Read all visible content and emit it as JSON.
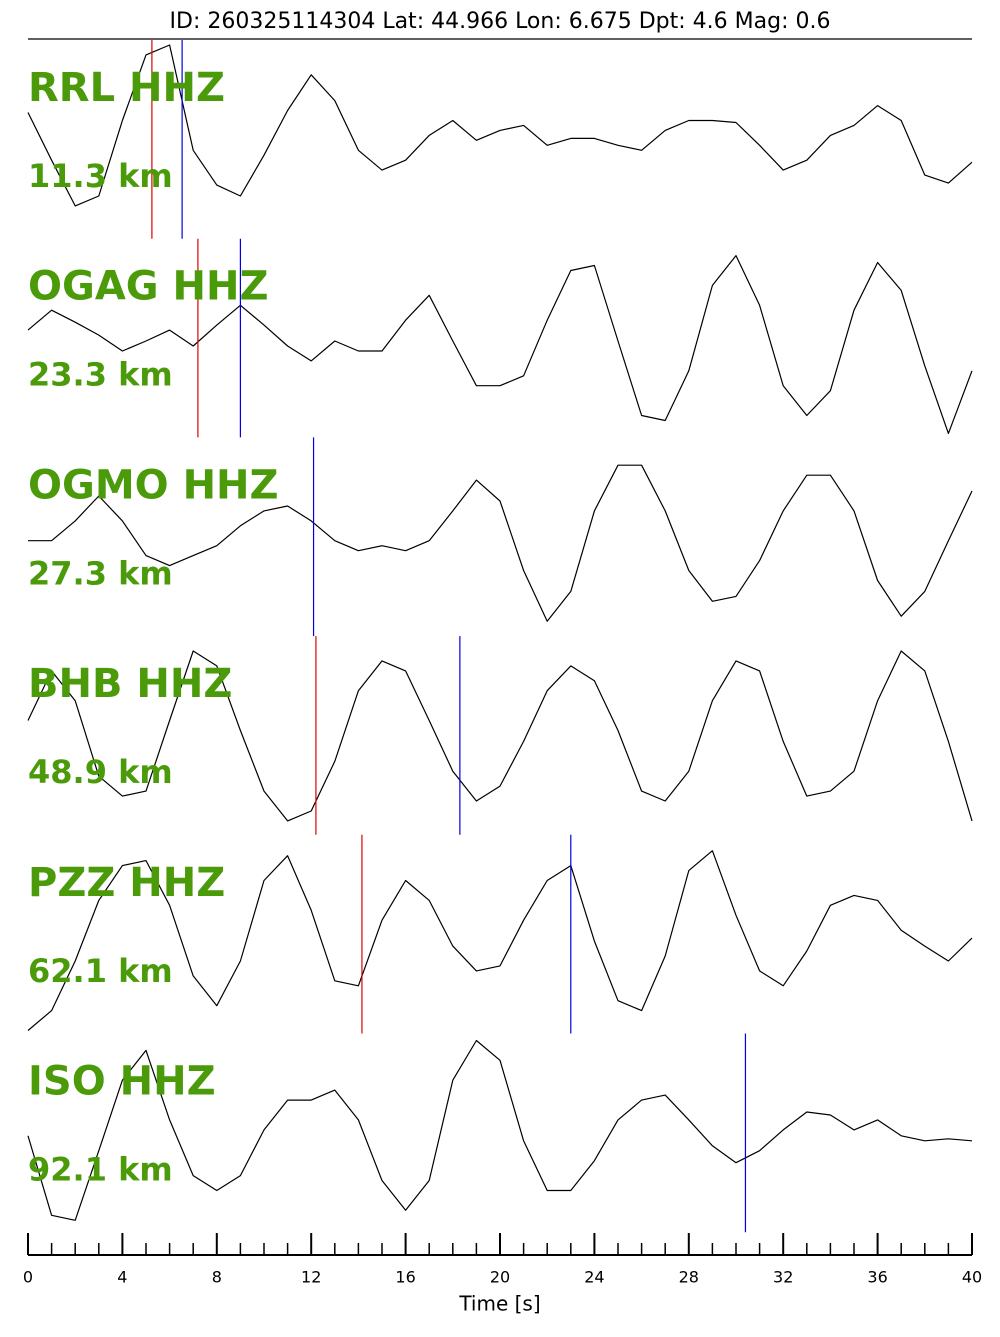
{
  "chart_data": {
    "type": "seismogram",
    "title": "ID: 260325114304 Lat:  44.966 Lon:   6.675 Dpt:     4.6 Mag:   0.6",
    "x_label": "Time [s]",
    "xlim": [
      0,
      40
    ],
    "xticks": [
      0,
      4,
      8,
      12,
      16,
      20,
      24,
      28,
      32,
      36,
      40
    ],
    "xminorticks": [
      1,
      2,
      3,
      5,
      6,
      7,
      9,
      10,
      11,
      13,
      14,
      15,
      17,
      18,
      19,
      21,
      22,
      23,
      25,
      26,
      27,
      29,
      30,
      31,
      33,
      34,
      35,
      37,
      38,
      39
    ],
    "ylim": [
      -1,
      1
    ],
    "trace_color": "#000000",
    "label_color": "#4a9a0a",
    "p_pick_color": "#e00000",
    "s_pick_color": "#0000e0",
    "x": [
      0,
      1,
      2,
      3,
      4,
      5,
      6,
      7,
      8,
      9,
      10,
      11,
      12,
      13,
      14,
      15,
      16,
      17,
      18,
      19,
      20,
      21,
      22,
      23,
      24,
      25,
      26,
      27,
      28,
      29,
      30,
      31,
      32,
      33,
      34,
      35,
      36,
      37,
      38,
      39,
      40
    ],
    "traces": [
      {
        "station": "RRL HHZ",
        "distance": "11.3 km",
        "p_pick": 5.25,
        "s_pick": 6.53,
        "values": [
          0.27,
          -0.21,
          -0.67,
          -0.57,
          0.19,
          0.85,
          0.95,
          -0.11,
          -0.46,
          -0.57,
          -0.16,
          0.29,
          0.65,
          0.39,
          -0.11,
          -0.31,
          -0.21,
          0.04,
          0.19,
          -0.01,
          0.09,
          0.14,
          -0.06,
          0.01,
          0.01,
          -0.06,
          -0.11,
          0.09,
          0.19,
          0.19,
          0.17,
          -0.06,
          -0.31,
          -0.21,
          0.04,
          0.14,
          0.34,
          0.19,
          -0.36,
          -0.44,
          -0.23
        ]
      },
      {
        "station": "OGAG HHZ",
        "distance": "23.3 km",
        "p_pick": 7.2,
        "s_pick": 9.0,
        "values": [
          0.08,
          0.28,
          0.16,
          0.03,
          -0.13,
          -0.03,
          0.08,
          -0.08,
          0.13,
          0.33,
          0.13,
          -0.08,
          -0.23,
          -0.03,
          -0.13,
          -0.13,
          0.18,
          0.43,
          -0.03,
          -0.48,
          -0.48,
          -0.38,
          0.18,
          0.68,
          0.73,
          -0.03,
          -0.78,
          -0.83,
          -0.33,
          0.53,
          0.83,
          0.33,
          -0.48,
          -0.78,
          -0.53,
          0.28,
          0.76,
          0.48,
          -0.28,
          -0.96,
          -0.33
        ]
      },
      {
        "station": "OGMO HHZ",
        "distance": "27.3 km",
        "s_pick": 12.1,
        "values": [
          -0.04,
          -0.04,
          0.16,
          0.41,
          0.16,
          -0.19,
          -0.29,
          -0.19,
          -0.09,
          0.11,
          0.26,
          0.31,
          0.16,
          -0.04,
          -0.14,
          -0.09,
          -0.14,
          -0.04,
          0.26,
          0.57,
          0.36,
          -0.34,
          -0.85,
          -0.55,
          0.26,
          0.72,
          0.72,
          0.26,
          -0.34,
          -0.65,
          -0.6,
          -0.24,
          0.26,
          0.62,
          0.62,
          0.26,
          -0.44,
          -0.8,
          -0.55,
          -0.04,
          0.46
        ]
      },
      {
        "station": "BHB HHZ",
        "distance": "48.9 km",
        "p_pick": 12.2,
        "s_pick": 18.3,
        "values": [
          0.15,
          0.65,
          0.35,
          -0.41,
          -0.61,
          -0.56,
          0.15,
          0.85,
          0.7,
          0.05,
          -0.56,
          -0.86,
          -0.76,
          -0.26,
          0.45,
          0.75,
          0.65,
          0.15,
          -0.36,
          -0.66,
          -0.51,
          -0.06,
          0.45,
          0.7,
          0.55,
          0.05,
          -0.56,
          -0.66,
          -0.36,
          0.35,
          0.75,
          0.65,
          -0.06,
          -0.61,
          -0.56,
          -0.36,
          0.35,
          0.85,
          0.65,
          -0.06,
          -0.86
        ]
      },
      {
        "station": "PZZ HHZ",
        "distance": "62.1 km",
        "p_pick": 14.15,
        "s_pick": 23.0,
        "values": [
          -0.97,
          -0.77,
          -0.27,
          0.34,
          0.69,
          0.74,
          0.29,
          -0.42,
          -0.72,
          -0.27,
          0.54,
          0.79,
          0.24,
          -0.47,
          -0.52,
          0.14,
          0.54,
          0.34,
          -0.12,
          -0.37,
          -0.32,
          0.14,
          0.54,
          0.69,
          -0.07,
          -0.67,
          -0.77,
          -0.22,
          0.64,
          0.84,
          0.19,
          -0.37,
          -0.52,
          -0.17,
          0.29,
          0.39,
          0.34,
          0.04,
          -0.12,
          -0.27,
          -0.04
        ]
      },
      {
        "station": "ISO HHZ",
        "distance": "92.1 km",
        "s_pick": 30.4,
        "values": [
          -0.03,
          -0.83,
          -0.88,
          -0.18,
          0.53,
          0.83,
          0.13,
          -0.43,
          -0.58,
          -0.43,
          0.03,
          0.33,
          0.33,
          0.43,
          0.13,
          -0.48,
          -0.78,
          -0.48,
          0.53,
          0.93,
          0.73,
          -0.08,
          -0.58,
          -0.58,
          -0.28,
          0.13,
          0.33,
          0.38,
          0.13,
          -0.13,
          -0.3,
          -0.18,
          0.03,
          0.21,
          0.18,
          0.03,
          0.13,
          -0.03,
          -0.08,
          -0.06,
          -0.08
        ]
      }
    ]
  }
}
